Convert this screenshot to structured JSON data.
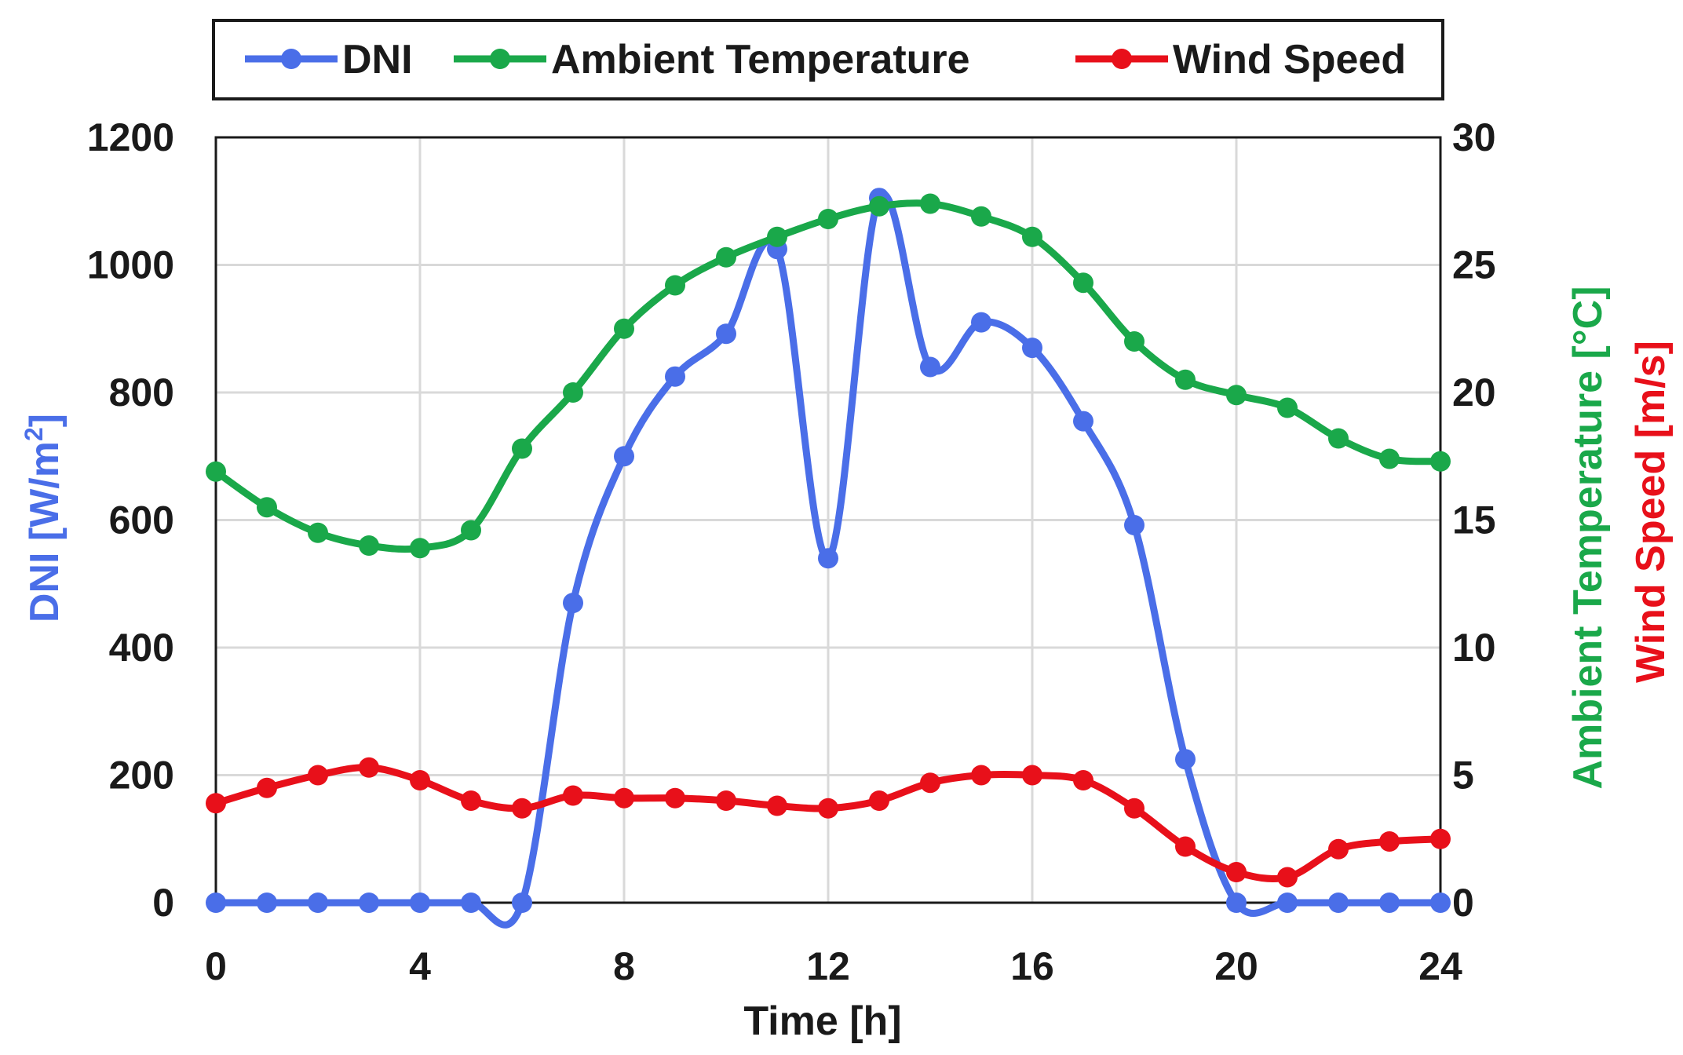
{
  "chart_data": {
    "type": "line",
    "x": [
      0,
      1,
      2,
      3,
      4,
      5,
      6,
      7,
      8,
      9,
      10,
      11,
      12,
      13,
      14,
      15,
      16,
      17,
      18,
      19,
      20,
      21,
      22,
      23,
      24
    ],
    "xlim": [
      0,
      24
    ],
    "xticks": [
      0,
      4,
      8,
      12,
      16,
      20,
      24
    ],
    "xticklabels": [
      "0",
      "4",
      "8",
      "12",
      "16",
      "20",
      "24"
    ],
    "xlabel": "Time [h]",
    "ylabel_left": "DNI [W/m²]",
    "ylabel_left_text": "DNI [W/m",
    "ylabel_left_sup": "2",
    "ylabel_left_close": "]",
    "ylabel_right_temp": "Ambient Temperature [°C]",
    "ylabel_right_wind": "Wind Speed [m/s]",
    "ylim_left": [
      0,
      1200
    ],
    "yticks_left": [
      0,
      200,
      400,
      600,
      800,
      1000,
      1200
    ],
    "yticklabels_left": [
      "0",
      "200",
      "400",
      "600",
      "800",
      "1000",
      "1200"
    ],
    "ylim_right": [
      0,
      30
    ],
    "yticks_right": [
      0,
      5,
      10,
      15,
      20,
      25,
      30
    ],
    "yticklabels_right": [
      "0",
      "5",
      "10",
      "15",
      "20",
      "25",
      "30"
    ],
    "grid": true,
    "legend_position": "top",
    "series": [
      {
        "name": "DNI",
        "axis": "left",
        "color": "#4a6ee8",
        "values": [
          0,
          0,
          0,
          0,
          0,
          0,
          0,
          470,
          700,
          825,
          892,
          1025,
          540,
          1105,
          840,
          910,
          870,
          755,
          592,
          225,
          0,
          0,
          0,
          0,
          0
        ]
      },
      {
        "name": "Ambient Temperature",
        "axis": "right",
        "color": "#1aa84a",
        "values": [
          16.9,
          15.5,
          14.5,
          14.0,
          13.9,
          14.6,
          17.8,
          20.0,
          22.5,
          24.2,
          25.3,
          26.1,
          26.8,
          27.3,
          27.4,
          26.9,
          26.1,
          24.3,
          22.0,
          20.5,
          19.9,
          19.4,
          18.2,
          17.4,
          17.3
        ]
      },
      {
        "name": "Wind Speed",
        "axis": "right",
        "color": "#e8101a",
        "values": [
          3.9,
          4.5,
          5.0,
          5.3,
          4.8,
          4.0,
          3.7,
          4.2,
          4.1,
          4.1,
          4.0,
          3.8,
          3.7,
          4.0,
          4.7,
          5.0,
          5.0,
          4.8,
          3.7,
          2.2,
          1.2,
          1.0,
          2.1,
          2.4,
          2.5
        ]
      }
    ]
  }
}
